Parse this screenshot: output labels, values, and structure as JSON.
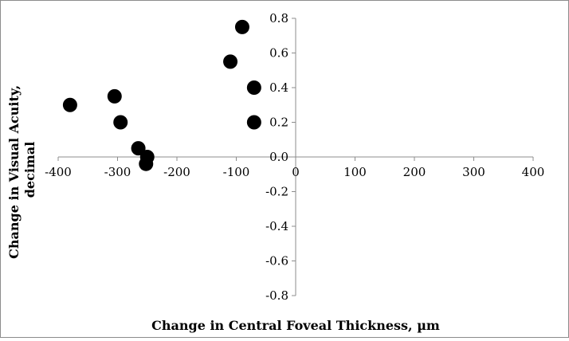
{
  "chart_data": {
    "type": "scatter",
    "title": "",
    "xlabel": "Change in Central Foveal Thickness, µm",
    "ylabel": "Change in Visual Acuity, decimal",
    "ylabel_lines": [
      "Change in Visual Acuity,",
      "decimal"
    ],
    "xlim": [
      -400,
      400
    ],
    "ylim": [
      -0.8,
      0.8
    ],
    "x_ticks": [
      -400,
      -300,
      -200,
      -100,
      0,
      100,
      200,
      300,
      400
    ],
    "x_tick_labels": [
      "-400",
      "-300",
      "-200",
      "-100",
      "0",
      "100",
      "200",
      "300",
      "400"
    ],
    "y_ticks": [
      0.8,
      0.6,
      0.4,
      0.2,
      0.0,
      -0.2,
      -0.4,
      -0.6,
      -0.8
    ],
    "y_tick_labels": [
      "0.8",
      "0.6",
      "0.4",
      "0.2",
      "0.0",
      "-0.2",
      "-0.4",
      "-0.6",
      "-0.8"
    ],
    "grid": false,
    "legend": "none",
    "marker_color": "#000000",
    "series": [
      {
        "points": [
          {
            "x": -90,
            "y": 0.75
          },
          {
            "x": -110,
            "y": 0.55
          },
          {
            "x": -70,
            "y": 0.4
          },
          {
            "x": -70,
            "y": 0.2
          },
          {
            "x": -380,
            "y": 0.3
          },
          {
            "x": -305,
            "y": 0.35
          },
          {
            "x": -295,
            "y": 0.2
          },
          {
            "x": -265,
            "y": 0.05
          },
          {
            "x": -250,
            "y": 0.0
          },
          {
            "x": -252,
            "y": -0.04
          }
        ]
      }
    ]
  }
}
